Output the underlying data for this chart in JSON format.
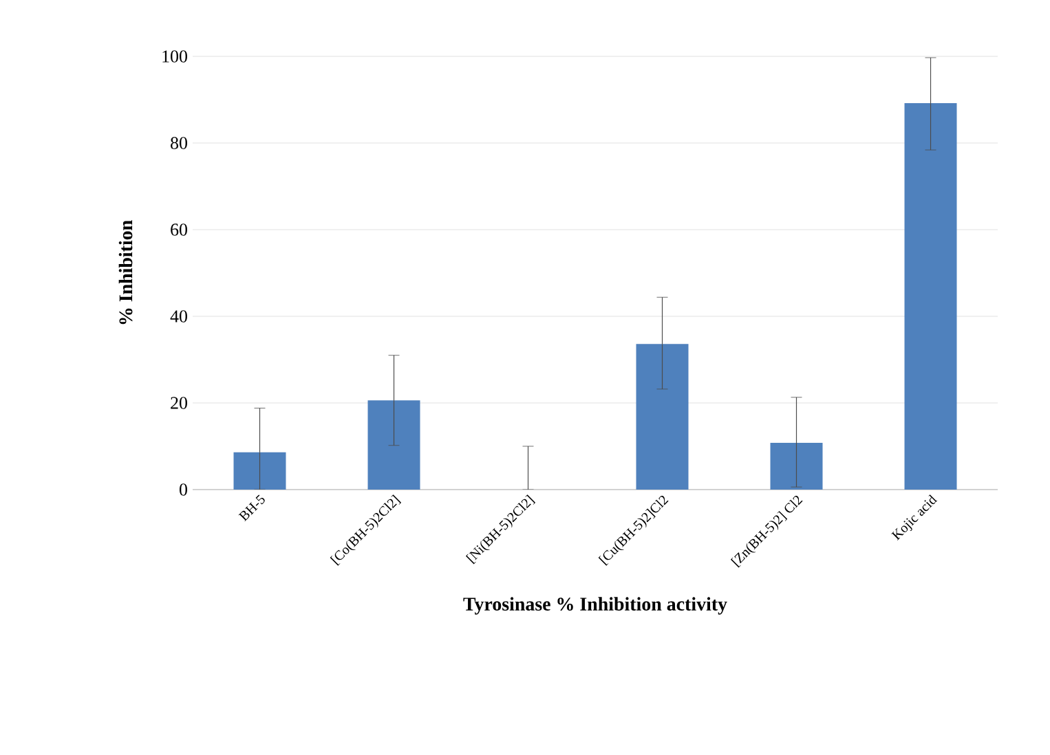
{
  "chart_data": {
    "type": "bar",
    "xlabel": "Tyrosinase % Inhibition activity",
    "ylabel": "% Inhibition",
    "categories": [
      "BH-5",
      "[Co(BH-5)2Cl2]",
      "[Ni(BH-5)2Cl2]",
      "[Cu(BH-5)2]Cl2",
      "[Zn(BH-5)2] Cl2",
      "Kojic acid"
    ],
    "values": [
      8.6,
      20.6,
      0,
      33.6,
      10.8,
      89.2
    ],
    "errors": [
      [
        0,
        18.8
      ],
      [
        10.2,
        31
      ],
      [
        0,
        10
      ],
      [
        23.2,
        44.4
      ],
      [
        0.6,
        21.3
      ],
      [
        78.4,
        99.7
      ]
    ],
    "color": "#4f81bd",
    "ylim": [
      0,
      100
    ],
    "yticks": [
      0,
      20,
      40,
      60,
      80,
      100
    ],
    "grid": "y"
  }
}
